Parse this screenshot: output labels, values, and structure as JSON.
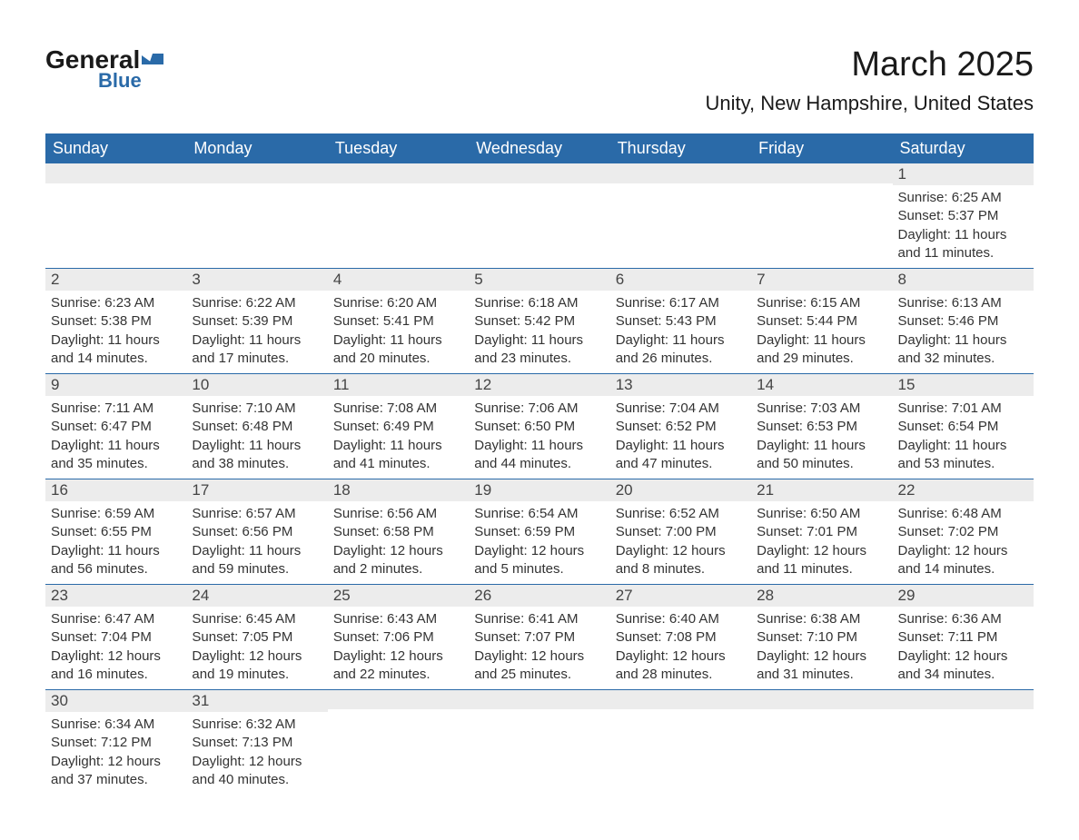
{
  "logo": {
    "text_general": "General",
    "text_blue": "Blue",
    "icon_color": "#2a6aa8"
  },
  "title": "March 2025",
  "location": "Unity, New Hampshire, United States",
  "colors": {
    "header_bg": "#2a6aa8",
    "header_text": "#ffffff",
    "daynum_bg": "#ececec",
    "border": "#2a6aa8",
    "body_text": "#333333",
    "background": "#ffffff"
  },
  "weekdays": [
    "Sunday",
    "Monday",
    "Tuesday",
    "Wednesday",
    "Thursday",
    "Friday",
    "Saturday"
  ],
  "weeks": [
    [
      null,
      null,
      null,
      null,
      null,
      null,
      {
        "n": "1",
        "sunrise": "6:25 AM",
        "sunset": "5:37 PM",
        "daylight": "11 hours and 11 minutes."
      }
    ],
    [
      {
        "n": "2",
        "sunrise": "6:23 AM",
        "sunset": "5:38 PM",
        "daylight": "11 hours and 14 minutes."
      },
      {
        "n": "3",
        "sunrise": "6:22 AM",
        "sunset": "5:39 PM",
        "daylight": "11 hours and 17 minutes."
      },
      {
        "n": "4",
        "sunrise": "6:20 AM",
        "sunset": "5:41 PM",
        "daylight": "11 hours and 20 minutes."
      },
      {
        "n": "5",
        "sunrise": "6:18 AM",
        "sunset": "5:42 PM",
        "daylight": "11 hours and 23 minutes."
      },
      {
        "n": "6",
        "sunrise": "6:17 AM",
        "sunset": "5:43 PM",
        "daylight": "11 hours and 26 minutes."
      },
      {
        "n": "7",
        "sunrise": "6:15 AM",
        "sunset": "5:44 PM",
        "daylight": "11 hours and 29 minutes."
      },
      {
        "n": "8",
        "sunrise": "6:13 AM",
        "sunset": "5:46 PM",
        "daylight": "11 hours and 32 minutes."
      }
    ],
    [
      {
        "n": "9",
        "sunrise": "7:11 AM",
        "sunset": "6:47 PM",
        "daylight": "11 hours and 35 minutes."
      },
      {
        "n": "10",
        "sunrise": "7:10 AM",
        "sunset": "6:48 PM",
        "daylight": "11 hours and 38 minutes."
      },
      {
        "n": "11",
        "sunrise": "7:08 AM",
        "sunset": "6:49 PM",
        "daylight": "11 hours and 41 minutes."
      },
      {
        "n": "12",
        "sunrise": "7:06 AM",
        "sunset": "6:50 PM",
        "daylight": "11 hours and 44 minutes."
      },
      {
        "n": "13",
        "sunrise": "7:04 AM",
        "sunset": "6:52 PM",
        "daylight": "11 hours and 47 minutes."
      },
      {
        "n": "14",
        "sunrise": "7:03 AM",
        "sunset": "6:53 PM",
        "daylight": "11 hours and 50 minutes."
      },
      {
        "n": "15",
        "sunrise": "7:01 AM",
        "sunset": "6:54 PM",
        "daylight": "11 hours and 53 minutes."
      }
    ],
    [
      {
        "n": "16",
        "sunrise": "6:59 AM",
        "sunset": "6:55 PM",
        "daylight": "11 hours and 56 minutes."
      },
      {
        "n": "17",
        "sunrise": "6:57 AM",
        "sunset": "6:56 PM",
        "daylight": "11 hours and 59 minutes."
      },
      {
        "n": "18",
        "sunrise": "6:56 AM",
        "sunset": "6:58 PM",
        "daylight": "12 hours and 2 minutes."
      },
      {
        "n": "19",
        "sunrise": "6:54 AM",
        "sunset": "6:59 PM",
        "daylight": "12 hours and 5 minutes."
      },
      {
        "n": "20",
        "sunrise": "6:52 AM",
        "sunset": "7:00 PM",
        "daylight": "12 hours and 8 minutes."
      },
      {
        "n": "21",
        "sunrise": "6:50 AM",
        "sunset": "7:01 PM",
        "daylight": "12 hours and 11 minutes."
      },
      {
        "n": "22",
        "sunrise": "6:48 AM",
        "sunset": "7:02 PM",
        "daylight": "12 hours and 14 minutes."
      }
    ],
    [
      {
        "n": "23",
        "sunrise": "6:47 AM",
        "sunset": "7:04 PM",
        "daylight": "12 hours and 16 minutes."
      },
      {
        "n": "24",
        "sunrise": "6:45 AM",
        "sunset": "7:05 PM",
        "daylight": "12 hours and 19 minutes."
      },
      {
        "n": "25",
        "sunrise": "6:43 AM",
        "sunset": "7:06 PM",
        "daylight": "12 hours and 22 minutes."
      },
      {
        "n": "26",
        "sunrise": "6:41 AM",
        "sunset": "7:07 PM",
        "daylight": "12 hours and 25 minutes."
      },
      {
        "n": "27",
        "sunrise": "6:40 AM",
        "sunset": "7:08 PM",
        "daylight": "12 hours and 28 minutes."
      },
      {
        "n": "28",
        "sunrise": "6:38 AM",
        "sunset": "7:10 PM",
        "daylight": "12 hours and 31 minutes."
      },
      {
        "n": "29",
        "sunrise": "6:36 AM",
        "sunset": "7:11 PM",
        "daylight": "12 hours and 34 minutes."
      }
    ],
    [
      {
        "n": "30",
        "sunrise": "6:34 AM",
        "sunset": "7:12 PM",
        "daylight": "12 hours and 37 minutes."
      },
      {
        "n": "31",
        "sunrise": "6:32 AM",
        "sunset": "7:13 PM",
        "daylight": "12 hours and 40 minutes."
      },
      null,
      null,
      null,
      null,
      null
    ]
  ],
  "labels": {
    "sunrise": "Sunrise: ",
    "sunset": "Sunset: ",
    "daylight": "Daylight: "
  }
}
